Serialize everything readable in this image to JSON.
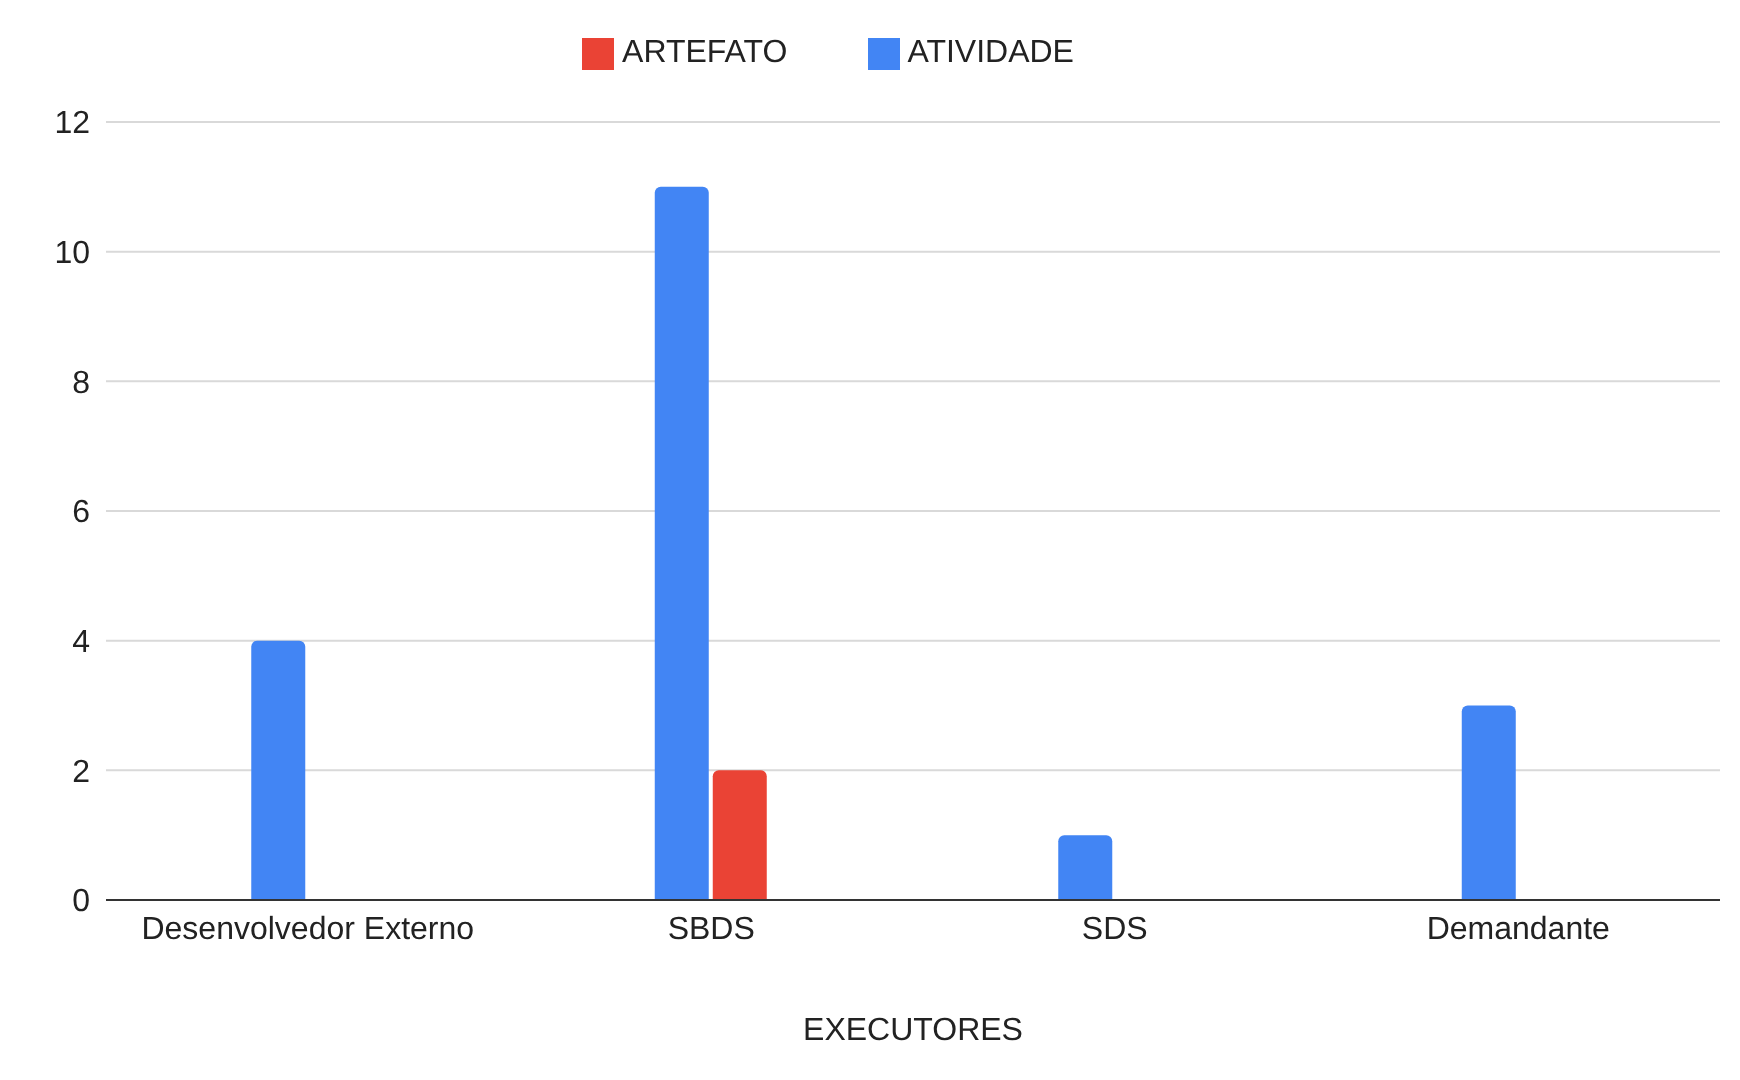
{
  "chart_data": {
    "type": "bar",
    "xlabel": "EXECUTORES",
    "categories": [
      "Desenvolvedor Externo",
      "SBDS",
      "SDS",
      "Demandante"
    ],
    "series": [
      {
        "name": "ATIVIDADE",
        "color": "#4285f4",
        "values": [
          4,
          11,
          1,
          3
        ]
      },
      {
        "name": "ARTEFATO",
        "color": "#ea4335",
        "values": [
          0,
          2,
          0,
          0
        ]
      }
    ],
    "ylim": [
      0,
      12
    ],
    "yticks": [
      0,
      2,
      4,
      6,
      8,
      10,
      12
    ],
    "grid": "y",
    "legend": "top"
  }
}
